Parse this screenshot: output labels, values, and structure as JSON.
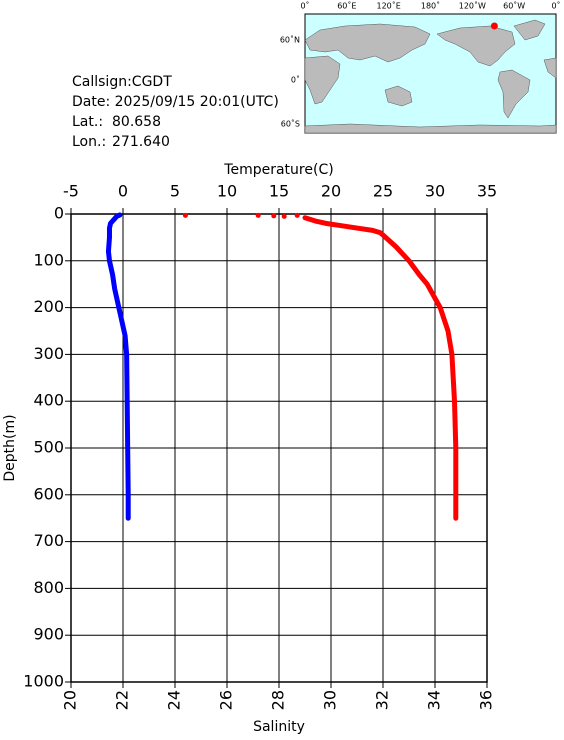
{
  "chart_data": {
    "type": "line",
    "info": {
      "callsign": "Callsign:CGDT",
      "date": "Date:  2025/09/15 20:01(UTC)",
      "lat_label": "Lat.:",
      "lat": 80.658,
      "lon_label": "Lon.:",
      "lon": {
        "value": 271.64,
        "label": "271.640"
      }
    },
    "x2label": "Temperature(C)",
    "xlabel": "Salinity",
    "ylabel": "Depth(m)",
    "x2lim": [
      -5,
      35
    ],
    "x2ticks": [
      -5,
      0,
      5,
      10,
      15,
      20,
      25,
      30,
      35
    ],
    "xlim": [
      20,
      36
    ],
    "xticks": [
      20,
      22,
      24,
      26,
      28,
      30,
      32,
      34,
      36
    ],
    "ylim": [
      0,
      1000
    ],
    "yticks": [
      0,
      100,
      200,
      300,
      400,
      500,
      600,
      700,
      800,
      900,
      1000
    ],
    "y_inverted": true,
    "grid": true,
    "series": [
      {
        "color": "#0000ff",
        "axis": "x2",
        "mode": "line",
        "depth": [
          2,
          5,
          10,
          15,
          20,
          30,
          50,
          80,
          100,
          130,
          160,
          200,
          230,
          260,
          300,
          400,
          500,
          600,
          650
        ],
        "values": [
          -0.3,
          -0.6,
          -0.8,
          -1.0,
          -1.2,
          -1.3,
          -1.3,
          -1.4,
          -1.3,
          -1.0,
          -0.8,
          -0.4,
          -0.1,
          0.2,
          0.35,
          0.4,
          0.45,
          0.5,
          0.5
        ]
      },
      {
        "color": "#ff0000",
        "axis": "x",
        "mode": "line",
        "depth": [
          8,
          15,
          20,
          25,
          30,
          35,
          40,
          50,
          70,
          100,
          130,
          150,
          170,
          200,
          250,
          300,
          400,
          500,
          650
        ],
        "values": [
          29.0,
          29.4,
          29.8,
          30.4,
          31.0,
          31.6,
          31.9,
          32.1,
          32.5,
          33.0,
          33.4,
          33.7,
          33.9,
          34.2,
          34.5,
          34.65,
          34.75,
          34.8,
          34.8
        ]
      },
      {
        "color": "#ff0000",
        "axis": "x",
        "mode": "points",
        "depth": [
          3,
          3,
          4,
          5,
          3
        ],
        "values": [
          24.4,
          27.2,
          27.8,
          28.2,
          28.7
        ]
      }
    ],
    "map": {
      "lon_labels": [
        "0˚",
        "60˚E",
        "120˚E",
        "180˚",
        "120˚W",
        "60˚W",
        "0˚"
      ],
      "lat_labels": [
        "60˚N",
        "0˚",
        "60˚S"
      ]
    }
  }
}
